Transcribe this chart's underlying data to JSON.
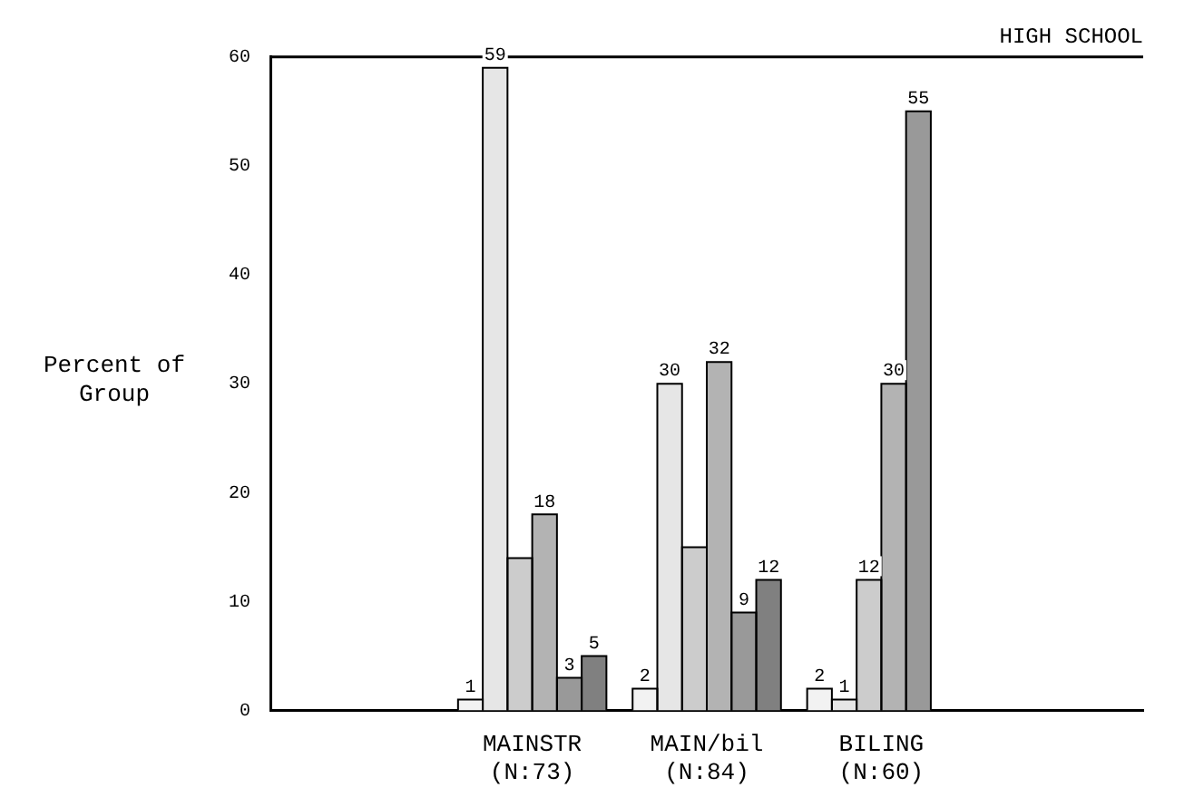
{
  "chart_data": {
    "type": "bar",
    "title": "HIGH SCHOOL",
    "ylabel": "Percent of Group",
    "categories": [
      null,
      "MAINSTR\n(N:73)",
      "MAIN/bil\n(N:84)",
      "BILING\n(N:60)",
      null
    ],
    "series": [
      {
        "color": "#f2f2f2",
        "values": [
          null,
          1,
          2,
          2,
          null
        ],
        "value_labels": [
          null,
          "1",
          "2",
          "2",
          null
        ]
      },
      {
        "color": "#e6e6e6",
        "values": [
          null,
          59,
          30,
          1,
          null
        ],
        "value_labels": [
          null,
          "59",
          "30",
          "1",
          null
        ]
      },
      {
        "color": "#cccccc",
        "values": [
          null,
          14,
          15,
          12,
          null
        ],
        "value_labels": [
          null,
          null,
          null,
          "12",
          null
        ]
      },
      {
        "color": "#b3b3b3",
        "values": [
          null,
          18,
          32,
          30,
          null
        ],
        "value_labels": [
          null,
          "18",
          "32",
          "30",
          null
        ]
      },
      {
        "color": "#999999",
        "values": [
          null,
          3,
          9,
          55,
          null
        ],
        "value_labels": [
          null,
          "3",
          "9",
          "55",
          null
        ]
      },
      {
        "color": "#808080",
        "values": [
          null,
          5,
          12,
          null,
          null
        ],
        "value_labels": [
          null,
          "5",
          "12",
          null,
          null
        ]
      }
    ],
    "ylim": [
      0,
      60
    ],
    "yticks": [
      0,
      10,
      20,
      30,
      40,
      50,
      60
    ],
    "grid": false,
    "legend": false
  }
}
